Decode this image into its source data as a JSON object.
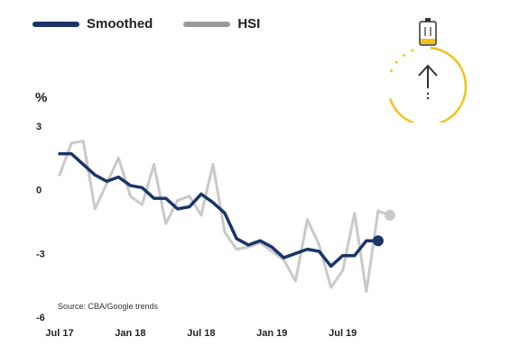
{
  "legend": {
    "smoothed_label": "Smoothed",
    "hsi_label": "HSI"
  },
  "colors": {
    "smoothed": "#1b3568",
    "hsi": "#c9c9c9",
    "legend_hsi": "#9a9a9a",
    "accent_ring": "#f2c21b"
  },
  "widget": {
    "icons": [
      "battery-icon",
      "up-arrow-icon"
    ]
  },
  "chart_data": {
    "type": "line",
    "ylabel": "%",
    "yticks": [
      3,
      0,
      -3,
      -6
    ],
    "ylim": [
      -6,
      3
    ],
    "xticks": [
      "Jul 17",
      "Jan 18",
      "Jul 18",
      "Jan 19",
      "Jul 19"
    ],
    "source": "Source: CBA/Google trends",
    "grid": false,
    "legend_position": "top-left",
    "series": [
      {
        "name": "Smoothed",
        "values": [
          1.7,
          1.7,
          1.2,
          0.7,
          0.4,
          0.6,
          0.2,
          0.1,
          -0.4,
          -0.4,
          -0.9,
          -0.8,
          -0.2,
          -0.6,
          -1.1,
          -2.3,
          -2.6,
          -2.4,
          -2.7,
          -3.2,
          -3.0,
          -2.8,
          -2.9,
          -3.6,
          -3.1,
          -3.1,
          -2.4,
          -2.4
        ]
      },
      {
        "name": "HSI",
        "values": [
          0.7,
          2.2,
          2.3,
          -0.9,
          0.3,
          1.5,
          -0.3,
          -0.7,
          1.2,
          -1.6,
          -0.5,
          -0.3,
          -1.2,
          1.2,
          -2.0,
          -2.8,
          -2.7,
          -2.5,
          -2.9,
          -3.3,
          -4.3,
          -1.4,
          -2.6,
          -4.6,
          -3.8,
          -1.1,
          -4.8,
          -1.0,
          -1.2
        ]
      }
    ]
  }
}
